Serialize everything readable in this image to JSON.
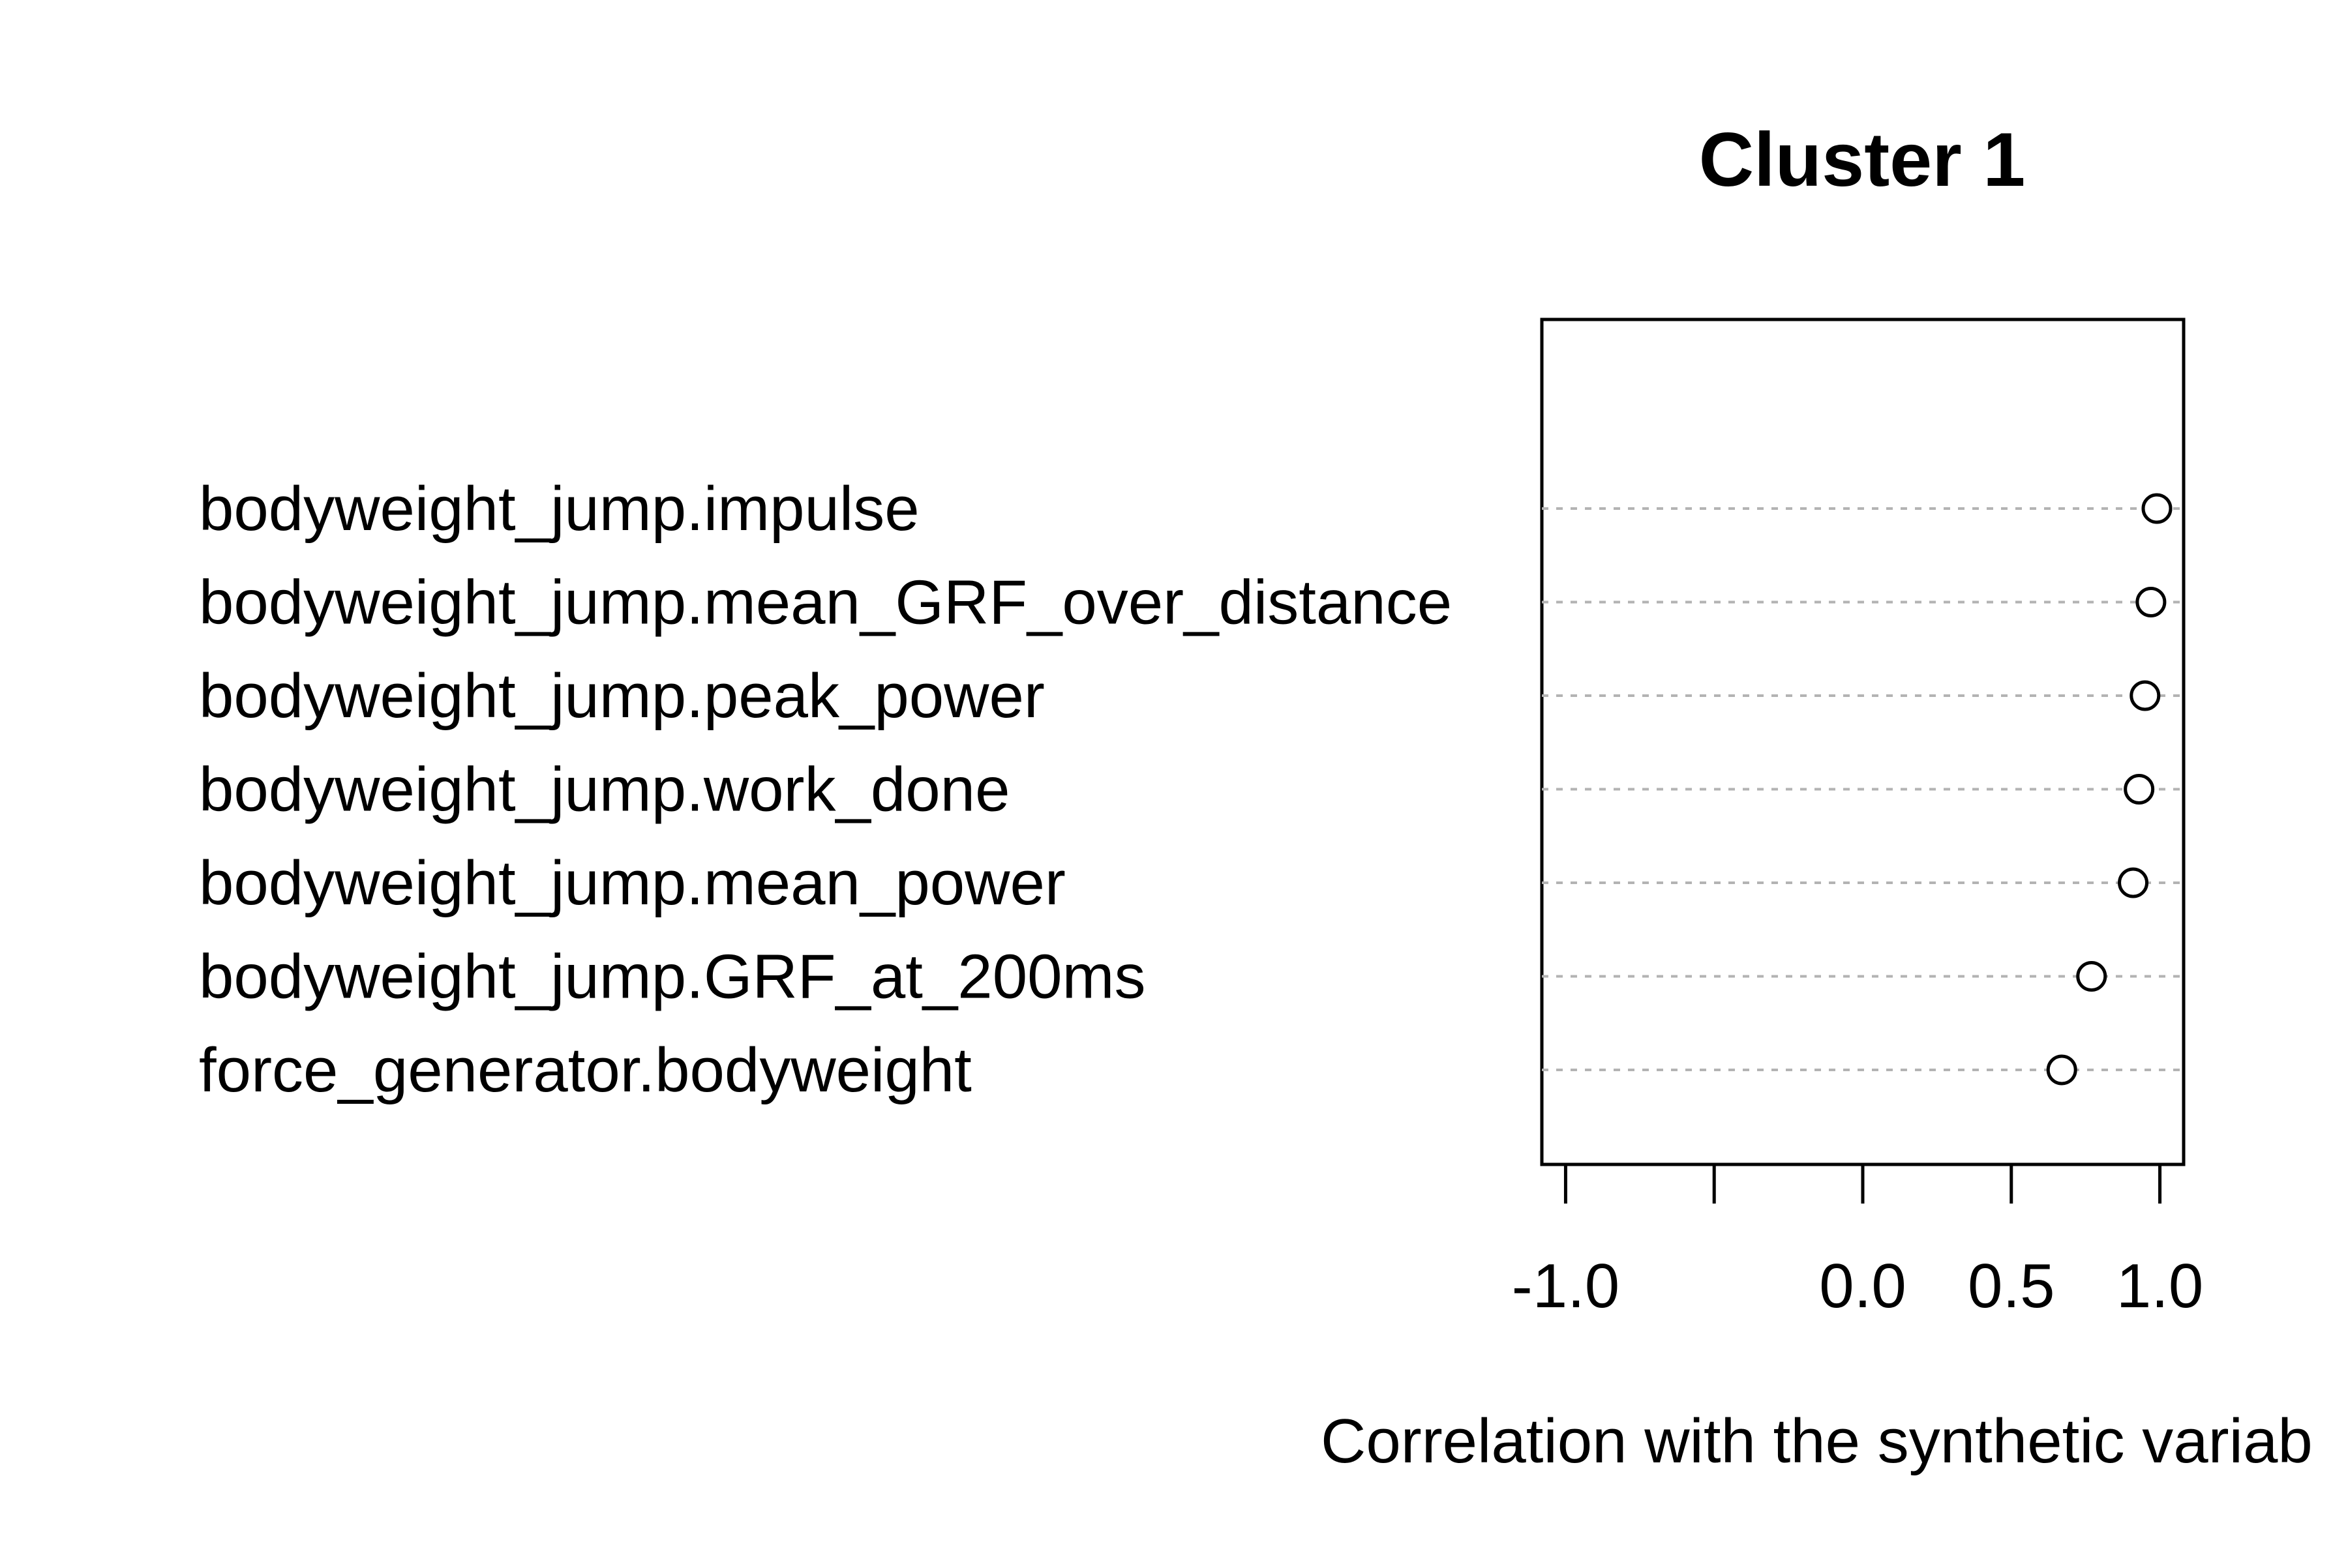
{
  "chart_data": {
    "type": "scatter",
    "title": "Cluster 1",
    "xlabel": "Correlation with the synthetic variab",
    "ylabel": "",
    "xlim": [
      -1.08,
      1.08
    ],
    "xticks": [
      -1.0,
      -0.5,
      0.0,
      0.5,
      1.0
    ],
    "xtick_labels": [
      "-1.0",
      "",
      "0.0",
      "0.5",
      "1.0"
    ],
    "grid": "dotted horizontal lines",
    "marker": "open circle",
    "categories": [
      "bodyweight_jump.impulse",
      "bodyweight_jump.mean_GRF_over_distance",
      "bodyweight_jump.peak_power",
      "bodyweight_jump.work_done",
      "bodyweight_jump.mean_power",
      "bodyweight_jump.GRF_at_200ms",
      "force_generator.bodyweight"
    ],
    "values": [
      0.99,
      0.97,
      0.95,
      0.93,
      0.91,
      0.77,
      0.67
    ]
  }
}
